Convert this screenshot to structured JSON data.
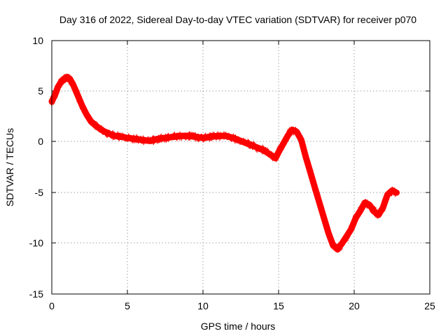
{
  "chart_data": {
    "type": "scatter",
    "title": "Day 316 of 2022, Sidereal Day-to-day VTEC variation (SDTVAR) for receiver p070",
    "xlabel": "GPS time / hours",
    "ylabel": "SDTVAR / TECUs",
    "xlim": [
      0,
      25
    ],
    "ylim": [
      -15,
      10
    ],
    "xticks": [
      0,
      5,
      10,
      15,
      20,
      25
    ],
    "xtick_labels": [
      "0",
      "5",
      "10",
      "15",
      "20",
      "25"
    ],
    "yticks": [
      10,
      5,
      0,
      -5,
      -10,
      -15
    ],
    "ytick_labels": [
      "10",
      "5",
      "0",
      "-5",
      "-10",
      "-15"
    ],
    "grid": true,
    "marker": "plus",
    "color": "#ff0000",
    "series": [
      {
        "name": "SDTVAR",
        "x": [
          0.0,
          0.2,
          0.4,
          0.6,
          0.8,
          1.0,
          1.2,
          1.4,
          1.6,
          1.8,
          2.0,
          2.3,
          2.6,
          3.0,
          3.4,
          3.8,
          4.2,
          4.6,
          5.0,
          5.5,
          6.0,
          6.5,
          7.0,
          7.5,
          8.0,
          8.5,
          9.0,
          9.5,
          10.0,
          10.5,
          11.0,
          11.5,
          12.0,
          12.5,
          13.0,
          13.5,
          14.0,
          14.5,
          14.8,
          15.0,
          15.3,
          15.6,
          15.9,
          16.2,
          16.5,
          16.8,
          17.1,
          17.4,
          17.7,
          18.0,
          18.3,
          18.6,
          18.9,
          19.2,
          19.5,
          19.8,
          20.1,
          20.4,
          20.7,
          21.0,
          21.3,
          21.6,
          21.9,
          22.2,
          22.5,
          22.8
        ],
        "y": [
          4.0,
          4.6,
          5.4,
          5.9,
          6.2,
          6.4,
          6.2,
          5.7,
          5.0,
          4.3,
          3.6,
          2.7,
          2.0,
          1.5,
          1.1,
          0.8,
          0.6,
          0.5,
          0.4,
          0.3,
          0.2,
          0.1,
          0.3,
          0.4,
          0.5,
          0.6,
          0.6,
          0.5,
          0.4,
          0.5,
          0.6,
          0.6,
          0.4,
          0.1,
          -0.2,
          -0.5,
          -0.8,
          -1.3,
          -1.6,
          -1.0,
          -0.2,
          0.6,
          1.2,
          1.0,
          0.2,
          -1.5,
          -3.0,
          -4.5,
          -6.0,
          -7.5,
          -9.0,
          -10.2,
          -10.6,
          -10.0,
          -9.3,
          -8.6,
          -7.5,
          -6.8,
          -6.0,
          -6.2,
          -6.8,
          -7.2,
          -6.5,
          -5.2,
          -4.8,
          -5.0
        ]
      }
    ]
  }
}
